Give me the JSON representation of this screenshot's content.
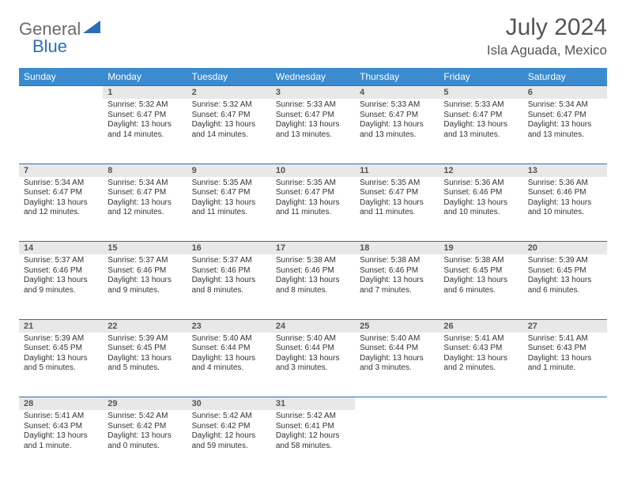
{
  "logo": {
    "general": "General",
    "blue": "Blue"
  },
  "title": {
    "month": "July 2024",
    "location": "Isla Aguada, Mexico"
  },
  "colors": {
    "header_bg": "#3b8bd0",
    "border": "#2a6fb5",
    "daynum_bg": "#e8e8e8",
    "text": "#333333",
    "title_text": "#555555",
    "logo_gray": "#6b6b6b",
    "logo_blue": "#2a6fb5"
  },
  "weekdays": [
    "Sunday",
    "Monday",
    "Tuesday",
    "Wednesday",
    "Thursday",
    "Friday",
    "Saturday"
  ],
  "weeks": [
    [
      null,
      {
        "n": "1",
        "sr": "5:32 AM",
        "ss": "6:47 PM",
        "dl": "13 hours and 14 minutes."
      },
      {
        "n": "2",
        "sr": "5:32 AM",
        "ss": "6:47 PM",
        "dl": "13 hours and 14 minutes."
      },
      {
        "n": "3",
        "sr": "5:33 AM",
        "ss": "6:47 PM",
        "dl": "13 hours and 13 minutes."
      },
      {
        "n": "4",
        "sr": "5:33 AM",
        "ss": "6:47 PM",
        "dl": "13 hours and 13 minutes."
      },
      {
        "n": "5",
        "sr": "5:33 AM",
        "ss": "6:47 PM",
        "dl": "13 hours and 13 minutes."
      },
      {
        "n": "6",
        "sr": "5:34 AM",
        "ss": "6:47 PM",
        "dl": "13 hours and 13 minutes."
      }
    ],
    [
      {
        "n": "7",
        "sr": "5:34 AM",
        "ss": "6:47 PM",
        "dl": "13 hours and 12 minutes."
      },
      {
        "n": "8",
        "sr": "5:34 AM",
        "ss": "6:47 PM",
        "dl": "13 hours and 12 minutes."
      },
      {
        "n": "9",
        "sr": "5:35 AM",
        "ss": "6:47 PM",
        "dl": "13 hours and 11 minutes."
      },
      {
        "n": "10",
        "sr": "5:35 AM",
        "ss": "6:47 PM",
        "dl": "13 hours and 11 minutes."
      },
      {
        "n": "11",
        "sr": "5:35 AM",
        "ss": "6:47 PM",
        "dl": "13 hours and 11 minutes."
      },
      {
        "n": "12",
        "sr": "5:36 AM",
        "ss": "6:46 PM",
        "dl": "13 hours and 10 minutes."
      },
      {
        "n": "13",
        "sr": "5:36 AM",
        "ss": "6:46 PM",
        "dl": "13 hours and 10 minutes."
      }
    ],
    [
      {
        "n": "14",
        "sr": "5:37 AM",
        "ss": "6:46 PM",
        "dl": "13 hours and 9 minutes."
      },
      {
        "n": "15",
        "sr": "5:37 AM",
        "ss": "6:46 PM",
        "dl": "13 hours and 9 minutes."
      },
      {
        "n": "16",
        "sr": "5:37 AM",
        "ss": "6:46 PM",
        "dl": "13 hours and 8 minutes."
      },
      {
        "n": "17",
        "sr": "5:38 AM",
        "ss": "6:46 PM",
        "dl": "13 hours and 8 minutes."
      },
      {
        "n": "18",
        "sr": "5:38 AM",
        "ss": "6:46 PM",
        "dl": "13 hours and 7 minutes."
      },
      {
        "n": "19",
        "sr": "5:38 AM",
        "ss": "6:45 PM",
        "dl": "13 hours and 6 minutes."
      },
      {
        "n": "20",
        "sr": "5:39 AM",
        "ss": "6:45 PM",
        "dl": "13 hours and 6 minutes."
      }
    ],
    [
      {
        "n": "21",
        "sr": "5:39 AM",
        "ss": "6:45 PM",
        "dl": "13 hours and 5 minutes."
      },
      {
        "n": "22",
        "sr": "5:39 AM",
        "ss": "6:45 PM",
        "dl": "13 hours and 5 minutes."
      },
      {
        "n": "23",
        "sr": "5:40 AM",
        "ss": "6:44 PM",
        "dl": "13 hours and 4 minutes."
      },
      {
        "n": "24",
        "sr": "5:40 AM",
        "ss": "6:44 PM",
        "dl": "13 hours and 3 minutes."
      },
      {
        "n": "25",
        "sr": "5:40 AM",
        "ss": "6:44 PM",
        "dl": "13 hours and 3 minutes."
      },
      {
        "n": "26",
        "sr": "5:41 AM",
        "ss": "6:43 PM",
        "dl": "13 hours and 2 minutes."
      },
      {
        "n": "27",
        "sr": "5:41 AM",
        "ss": "6:43 PM",
        "dl": "13 hours and 1 minute."
      }
    ],
    [
      {
        "n": "28",
        "sr": "5:41 AM",
        "ss": "6:43 PM",
        "dl": "13 hours and 1 minute."
      },
      {
        "n": "29",
        "sr": "5:42 AM",
        "ss": "6:42 PM",
        "dl": "13 hours and 0 minutes."
      },
      {
        "n": "30",
        "sr": "5:42 AM",
        "ss": "6:42 PM",
        "dl": "12 hours and 59 minutes."
      },
      {
        "n": "31",
        "sr": "5:42 AM",
        "ss": "6:41 PM",
        "dl": "12 hours and 58 minutes."
      },
      null,
      null,
      null
    ]
  ],
  "labels": {
    "sunrise": "Sunrise:",
    "sunset": "Sunset:",
    "daylight": "Daylight:"
  }
}
